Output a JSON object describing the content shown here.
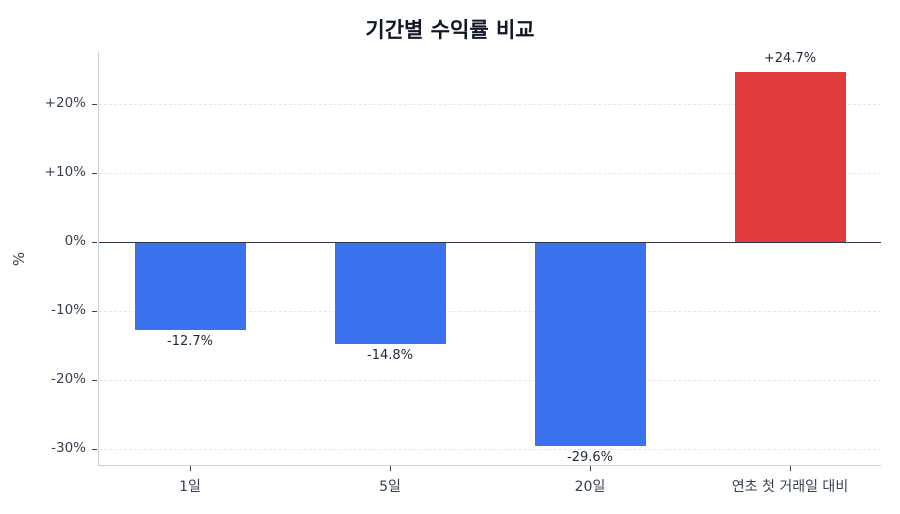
{
  "chart_data": {
    "type": "bar",
    "title": "기간별 수익률 비교",
    "xlabel": "",
    "ylabel": "%",
    "categories": [
      "1일",
      "5일",
      "20일",
      "연초 첫 거래일 대비"
    ],
    "values": [
      -12.7,
      -14.8,
      -29.6,
      24.7
    ],
    "value_labels": [
      "-12.7%",
      "-14.8%",
      "-29.6%",
      "+24.7%"
    ],
    "bar_colors": [
      "#3b73ef",
      "#3b73ef",
      "#3b73ef",
      "#e03a3c"
    ],
    "ylim": [
      -31.5,
      28
    ],
    "yticks": [
      -30,
      -20,
      -10,
      0,
      10,
      20
    ],
    "ytick_labels": [
      "-30%",
      "-20%",
      "-10%",
      "0%",
      "+10%",
      "+20%"
    ],
    "grid": "y dashed",
    "legend": null,
    "colors": {
      "negative": "#3b73ef",
      "positive": "#e03a3c",
      "zero_line": "#2d3748"
    }
  }
}
